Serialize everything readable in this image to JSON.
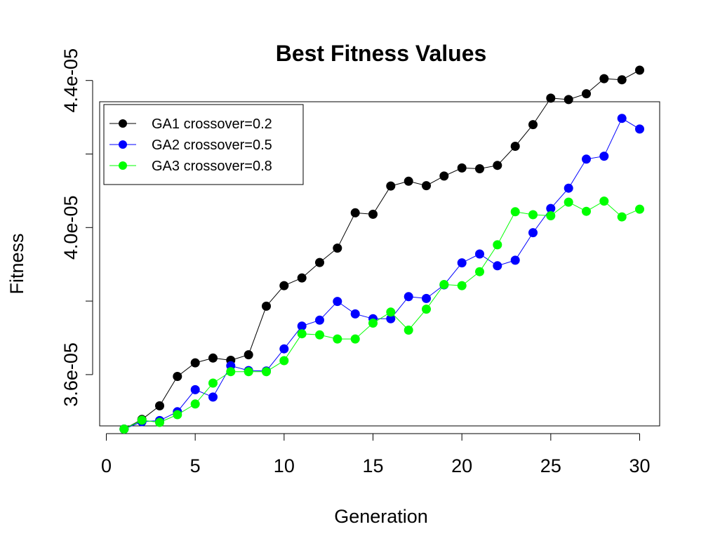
{
  "chart_data": {
    "type": "line",
    "title": "Best Fitness Values",
    "xlabel": "Generation",
    "ylabel": "Fitness",
    "xlim": [
      0,
      30
    ],
    "ylim": [
      3.45e-05,
      4.45e-05
    ],
    "x_ticks": [
      0,
      5,
      10,
      15,
      20,
      25,
      30
    ],
    "x_tick_labels": [
      "0",
      "5",
      "10",
      "15",
      "20",
      "25",
      "30"
    ],
    "y_ticks": [
      3.6e-05,
      3.8e-05,
      4e-05,
      4.2e-05,
      4.4e-05
    ],
    "y_tick_labels": [
      "3.6e-05",
      "",
      "4.0e-05",
      "",
      "4.4e-05"
    ],
    "grid": false,
    "legend_position": "top-left",
    "x": [
      1,
      2,
      3,
      4,
      5,
      6,
      7,
      8,
      9,
      10,
      11,
      12,
      13,
      14,
      15,
      16,
      17,
      18,
      19,
      20,
      21,
      22,
      23,
      24,
      25,
      26,
      27,
      28,
      29,
      30
    ],
    "series": [
      {
        "name": "GA1 crossover=0.2",
        "color": "#000000",
        "values": [
          3.452e-05,
          3.478e-05,
          3.515e-05,
          3.595e-05,
          3.632e-05,
          3.645e-05,
          3.639e-05,
          3.654e-05,
          3.786e-05,
          3.842e-05,
          3.863e-05,
          3.905e-05,
          3.944e-05,
          4.04e-05,
          4.036e-05,
          4.113e-05,
          4.126e-05,
          4.114e-05,
          4.14e-05,
          4.162e-05,
          4.16e-05,
          4.169e-05,
          4.221e-05,
          4.28e-05,
          4.352e-05,
          4.348e-05,
          4.364e-05,
          4.405e-05,
          4.402e-05,
          4.428e-05
        ]
      },
      {
        "name": "GA2 crossover=0.5",
        "color": "#0000ff",
        "values": [
          3.452e-05,
          3.472e-05,
          3.475e-05,
          3.499e-05,
          3.559e-05,
          3.539e-05,
          3.624e-05,
          3.611e-05,
          3.61e-05,
          3.67e-05,
          3.732e-05,
          3.748e-05,
          3.799e-05,
          3.765e-05,
          3.752e-05,
          3.752e-05,
          3.812e-05,
          3.807e-05,
          3.844e-05,
          3.904e-05,
          3.928e-05,
          3.896e-05,
          3.911e-05,
          3.986e-05,
          4.052e-05,
          4.107e-05,
          4.186e-05,
          4.194e-05,
          4.297e-05,
          4.268e-05
        ]
      },
      {
        "name": "GA3 crossover=0.8",
        "color": "#00ff00",
        "values": [
          3.452e-05,
          3.476e-05,
          3.47e-05,
          3.491e-05,
          3.52e-05,
          3.577e-05,
          3.608e-05,
          3.608e-05,
          3.608e-05,
          3.638e-05,
          3.711e-05,
          3.708e-05,
          3.697e-05,
          3.697e-05,
          3.74e-05,
          3.77e-05,
          3.721e-05,
          3.778e-05,
          3.845e-05,
          3.842e-05,
          3.88e-05,
          3.953e-05,
          4.043e-05,
          4.035e-05,
          4.032e-05,
          4.069e-05,
          4.044e-05,
          4.072e-05,
          4.029e-05,
          4.05e-05
        ]
      }
    ]
  }
}
